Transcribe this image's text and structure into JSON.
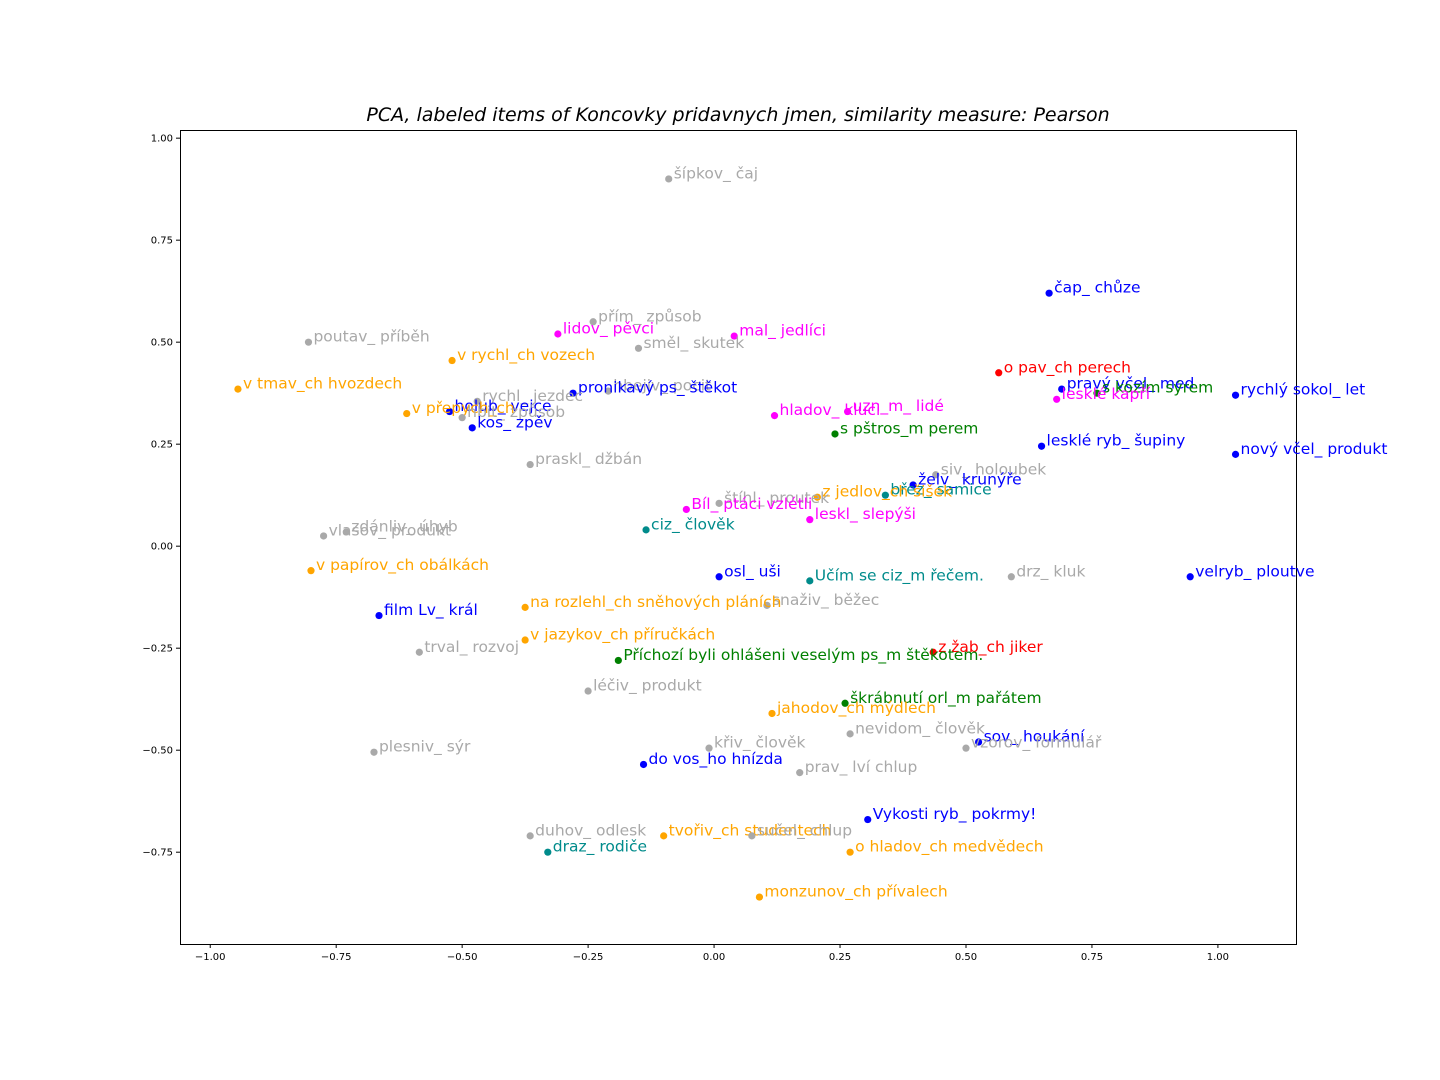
{
  "chart_data": {
    "type": "scatter",
    "title": "PCA, labeled items of Koncovky pridavnych jmen, similarity measure: Pearson",
    "xlabel": "",
    "ylabel": "",
    "xlim": [
      -1.06,
      1.155
    ],
    "ylim": [
      -0.975,
      1.02
    ],
    "xticks": [
      -1.0,
      -0.75,
      -0.5,
      -0.25,
      0.0,
      0.25,
      0.5,
      0.75,
      1.0
    ],
    "xtick_labels": [
      "−1.00",
      "−0.75",
      "−0.50",
      "−0.25",
      "0.00",
      "0.25",
      "0.50",
      "0.75",
      "1.00"
    ],
    "yticks": [
      1.0,
      0.75,
      0.5,
      0.25,
      0.0,
      -0.25,
      -0.5,
      -0.75
    ],
    "ytick_labels": [
      "1.00",
      "0.75",
      "0.50",
      "0.25",
      "0.00",
      "−0.25",
      "−0.50",
      "−0.75"
    ],
    "grid": false,
    "colors": {
      "blue": "#0000ff",
      "gray": "#a9a9a9",
      "orange": "#ffa500",
      "magenta": "#ff00ff",
      "teal": "#008b8b",
      "green": "#008000",
      "red": "#ff0000"
    },
    "points": [
      {
        "label": "šípkov_ čaj",
        "x": -0.09,
        "y": 0.9,
        "color": "gray"
      },
      {
        "label": "čap_ chůze",
        "x": 0.665,
        "y": 0.62,
        "color": "blue"
      },
      {
        "label": "přím_ způsob",
        "x": -0.24,
        "y": 0.55,
        "color": "gray"
      },
      {
        "label": "lidov_ pěvci",
        "x": -0.31,
        "y": 0.52,
        "color": "magenta"
      },
      {
        "label": "mal_ jedlíci",
        "x": 0.04,
        "y": 0.515,
        "color": "magenta"
      },
      {
        "label": "poutav_ příběh",
        "x": -0.805,
        "y": 0.5,
        "color": "gray"
      },
      {
        "label": "směl_ skutek",
        "x": -0.15,
        "y": 0.485,
        "color": "gray"
      },
      {
        "label": "v rychl_ch vozech",
        "x": -0.52,
        "y": 0.455,
        "color": "orange"
      },
      {
        "label": "o pav_ch perech",
        "x": 0.565,
        "y": 0.425,
        "color": "red"
      },
      {
        "label": "v tmav_ch hvozdech",
        "x": -0.945,
        "y": 0.385,
        "color": "orange"
      },
      {
        "label": "hbejiv_ pocit",
        "x": -0.21,
        "y": 0.38,
        "color": "gray"
      },
      {
        "label": "pravý včel_ med",
        "x": 0.69,
        "y": 0.385,
        "color": "blue"
      },
      {
        "label": "pronikavý ps_ štěkot",
        "x": -0.28,
        "y": 0.375,
        "color": "blue"
      },
      {
        "label": "s kozím sýrem",
        "x": 0.76,
        "y": 0.375,
        "color": "green"
      },
      {
        "label": "rychlý sokol_ let",
        "x": 1.035,
        "y": 0.37,
        "color": "blue"
      },
      {
        "label": "lesklé kapří",
        "x": 0.68,
        "y": 0.36,
        "color": "magenta"
      },
      {
        "label": "rychl_ jezdec",
        "x": -0.47,
        "y": 0.355,
        "color": "gray"
      },
      {
        "label": "holub_ vejce",
        "x": -0.525,
        "y": 0.33,
        "color": "blue"
      },
      {
        "label": "v přepych_ch",
        "x": -0.61,
        "y": 0.325,
        "color": "orange"
      },
      {
        "label": "hladov_ kluci",
        "x": 0.12,
        "y": 0.32,
        "color": "magenta"
      },
      {
        "label": "uzn_m_ lidé",
        "x": 0.265,
        "y": 0.33,
        "color": "magenta"
      },
      {
        "label": "hbit_ způsob",
        "x": -0.5,
        "y": 0.315,
        "color": "gray"
      },
      {
        "label": "kos_ zpěv",
        "x": -0.48,
        "y": 0.29,
        "color": "blue"
      },
      {
        "label": "s pštros_m perem",
        "x": 0.24,
        "y": 0.275,
        "color": "green"
      },
      {
        "label": "lesklé ryb_ šupiny",
        "x": 0.65,
        "y": 0.245,
        "color": "blue"
      },
      {
        "label": "nový včel_ produkt",
        "x": 1.035,
        "y": 0.225,
        "color": "blue"
      },
      {
        "label": "praskl_ džbán",
        "x": -0.365,
        "y": 0.2,
        "color": "gray"
      },
      {
        "label": "siv_ holoubek",
        "x": 0.44,
        "y": 0.175,
        "color": "gray"
      },
      {
        "label": "želv_ krunýře",
        "x": 0.395,
        "y": 0.15,
        "color": "blue"
      },
      {
        "label": "břez_ samice",
        "x": 0.34,
        "y": 0.125,
        "color": "teal"
      },
      {
        "label": "z jedlov_ch šišek",
        "x": 0.205,
        "y": 0.12,
        "color": "orange"
      },
      {
        "label": "štíhl_ proutek",
        "x": 0.01,
        "y": 0.105,
        "color": "gray"
      },
      {
        "label": "Bíl_ ptáci vzlétli",
        "x": -0.055,
        "y": 0.09,
        "color": "magenta"
      },
      {
        "label": "leskl_ slepýši",
        "x": 0.19,
        "y": 0.065,
        "color": "magenta"
      },
      {
        "label": "ciz_ člověk",
        "x": -0.135,
        "y": 0.04,
        "color": "teal"
      },
      {
        "label": "zdánliv_ úhyb",
        "x": -0.73,
        "y": 0.035,
        "color": "gray"
      },
      {
        "label": "vlasov_ produkt",
        "x": -0.775,
        "y": 0.025,
        "color": "gray"
      },
      {
        "label": "v papírov_ch obálkách",
        "x": -0.8,
        "y": -0.06,
        "color": "orange"
      },
      {
        "label": "osl_ uši",
        "x": 0.01,
        "y": -0.075,
        "color": "blue"
      },
      {
        "label": "drz_ kluk",
        "x": 0.59,
        "y": -0.075,
        "color": "gray"
      },
      {
        "label": "velryb_ ploutve",
        "x": 0.945,
        "y": -0.075,
        "color": "blue"
      },
      {
        "label": "Učím se ciz_m řečem.",
        "x": 0.19,
        "y": -0.085,
        "color": "teal"
      },
      {
        "label": "snaživ_ běžec",
        "x": 0.105,
        "y": -0.145,
        "color": "gray"
      },
      {
        "label": "na rozlehl_ch sněhových pláních",
        "x": -0.375,
        "y": -0.15,
        "color": "orange"
      },
      {
        "label": "film Lv_ král",
        "x": -0.665,
        "y": -0.17,
        "color": "blue"
      },
      {
        "label": "v jazykov_ch příručkách",
        "x": -0.375,
        "y": -0.23,
        "color": "orange"
      },
      {
        "label": "trval_ rozvoj",
        "x": -0.585,
        "y": -0.26,
        "color": "gray"
      },
      {
        "label": "z žab_ch jiker",
        "x": 0.435,
        "y": -0.26,
        "color": "red"
      },
      {
        "label": "Příchozí byli ohlášeni veselým ps_m štěkotem.",
        "x": -0.19,
        "y": -0.28,
        "color": "green"
      },
      {
        "label": "léčiv_ produkt",
        "x": -0.25,
        "y": -0.355,
        "color": "gray"
      },
      {
        "label": "škrábnutí orl_m pařátem",
        "x": 0.26,
        "y": -0.385,
        "color": "green"
      },
      {
        "label": "jahodov_ch mýdlech",
        "x": 0.115,
        "y": -0.41,
        "color": "orange"
      },
      {
        "label": "nevidom_ člověk",
        "x": 0.27,
        "y": -0.46,
        "color": "gray"
      },
      {
        "label": "sov_ houkání",
        "x": 0.525,
        "y": -0.48,
        "color": "blue"
      },
      {
        "label": "vzorov_ formulář",
        "x": 0.5,
        "y": -0.495,
        "color": "gray"
      },
      {
        "label": "křiv_ člověk",
        "x": -0.01,
        "y": -0.495,
        "color": "gray"
      },
      {
        "label": "plesniv_ sýr",
        "x": -0.675,
        "y": -0.505,
        "color": "gray"
      },
      {
        "label": "do vos_ho hnízda",
        "x": -0.14,
        "y": -0.535,
        "color": "blue"
      },
      {
        "label": "prav_ lví chlup",
        "x": 0.17,
        "y": -0.555,
        "color": "gray"
      },
      {
        "label": "Vykosti ryb_ pokrmy!",
        "x": 0.305,
        "y": -0.67,
        "color": "blue"
      },
      {
        "label": "duhov_ odlesk",
        "x": -0.365,
        "y": -0.71,
        "color": "gray"
      },
      {
        "label": "tvořiv_ch studentech",
        "x": -0.1,
        "y": -0.71,
        "color": "orange"
      },
      {
        "label": "sučel_ chlup",
        "x": 0.075,
        "y": -0.71,
        "color": "gray"
      },
      {
        "label": "draz_ rodiče",
        "x": -0.33,
        "y": -0.75,
        "color": "teal"
      },
      {
        "label": "o hladov_ch medvědech",
        "x": 0.27,
        "y": -0.75,
        "color": "orange"
      },
      {
        "label": "monzunov_ch přívalech",
        "x": 0.09,
        "y": -0.86,
        "color": "orange"
      }
    ]
  }
}
